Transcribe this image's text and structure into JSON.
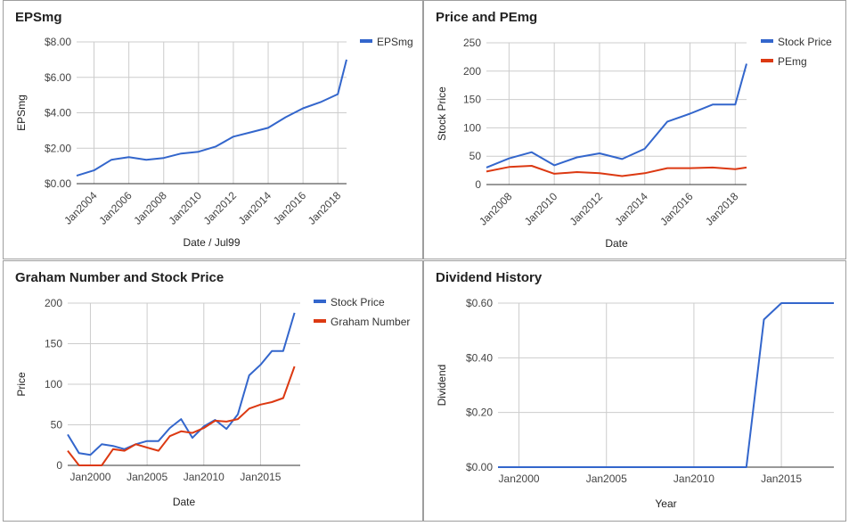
{
  "charts": [
    {
      "title": "EPSmg",
      "chart_data": {
        "type": "line",
        "x_type": "date",
        "xlabel": "Date / Jul99",
        "ylabel": "EPSmg",
        "xlim": [
          "2003-01",
          "2018-07"
        ],
        "ylim": [
          0,
          8
        ],
        "x_ticks": [
          "Jan2004",
          "Jan2006",
          "Jan2008",
          "Jan2010",
          "Jan2012",
          "Jan2014",
          "Jan2016",
          "Jan2018"
        ],
        "y_ticks": [
          "$0.00",
          "$2.00",
          "$4.00",
          "$6.00",
          "$8.00"
        ],
        "grid": true,
        "legend_position": "top-right",
        "series": [
          {
            "name": "EPSmg",
            "color": "#3366cc",
            "points": [
              [
                "2003-01",
                0.45
              ],
              [
                "2004-01",
                0.75
              ],
              [
                "2005-01",
                1.35
              ],
              [
                "2006-01",
                1.5
              ],
              [
                "2007-01",
                1.35
              ],
              [
                "2008-01",
                1.45
              ],
              [
                "2009-01",
                1.7
              ],
              [
                "2010-01",
                1.8
              ],
              [
                "2011-01",
                2.1
              ],
              [
                "2012-01",
                2.65
              ],
              [
                "2013-01",
                2.9
              ],
              [
                "2014-01",
                3.15
              ],
              [
                "2015-01",
                3.75
              ],
              [
                "2016-01",
                4.25
              ],
              [
                "2017-01",
                4.6
              ],
              [
                "2018-01",
                5.05
              ],
              [
                "2018-07",
                7.0
              ]
            ]
          }
        ]
      }
    },
    {
      "title": "Price and PEmg",
      "chart_data": {
        "type": "line",
        "x_type": "date",
        "xlabel": "Date",
        "ylabel": "Stock Price",
        "xlim": [
          "2007-01",
          "2018-07"
        ],
        "ylim": [
          0,
          250
        ],
        "x_ticks": [
          "Jan2008",
          "Jan2010",
          "Jan2012",
          "Jan2014",
          "Jan2016",
          "Jan2018"
        ],
        "y_ticks": [
          "0",
          "50",
          "100",
          "150",
          "200",
          "250"
        ],
        "grid": true,
        "legend_position": "top-right",
        "series": [
          {
            "name": "Stock Price",
            "color": "#3366cc",
            "points": [
              [
                "2007-01",
                30
              ],
              [
                "2008-01",
                46
              ],
              [
                "2009-01",
                57
              ],
              [
                "2010-01",
                34
              ],
              [
                "2011-01",
                48
              ],
              [
                "2012-01",
                55
              ],
              [
                "2013-01",
                45
              ],
              [
                "2014-01",
                63
              ],
              [
                "2015-01",
                111
              ],
              [
                "2016-01",
                125
              ],
              [
                "2017-01",
                141
              ],
              [
                "2018-01",
                141
              ],
              [
                "2018-07",
                213
              ]
            ]
          },
          {
            "name": "PEmg",
            "color": "#dc3912",
            "points": [
              [
                "2007-01",
                23
              ],
              [
                "2008-01",
                31
              ],
              [
                "2009-01",
                33
              ],
              [
                "2010-01",
                19
              ],
              [
                "2011-01",
                22
              ],
              [
                "2012-01",
                20
              ],
              [
                "2013-01",
                15
              ],
              [
                "2014-01",
                20
              ],
              [
                "2015-01",
                29
              ],
              [
                "2016-01",
                29
              ],
              [
                "2017-01",
                30
              ],
              [
                "2018-01",
                27
              ],
              [
                "2018-07",
                30
              ]
            ]
          }
        ]
      }
    },
    {
      "title": "Graham Number and Stock Price",
      "chart_data": {
        "type": "line",
        "x_type": "year",
        "xlabel": "Date",
        "ylabel": "Price",
        "xlim": [
          1998,
          2018.5
        ],
        "ylim": [
          0,
          200
        ],
        "x_ticks": [
          {
            "value": 2000,
            "label": "Jan2000"
          },
          {
            "value": 2005,
            "label": "Jan2005"
          },
          {
            "value": 2010,
            "label": "Jan2010"
          },
          {
            "value": 2015,
            "label": "Jan2015"
          }
        ],
        "y_ticks": [
          "0",
          "50",
          "100",
          "150",
          "200"
        ],
        "grid": true,
        "legend_position": "top-right",
        "series": [
          {
            "name": "Stock Price",
            "color": "#3366cc",
            "points": [
              [
                1998,
                38
              ],
              [
                1999,
                15
              ],
              [
                2000,
                13
              ],
              [
                2001,
                26
              ],
              [
                2002,
                24
              ],
              [
                2003,
                20
              ],
              [
                2004,
                26
              ],
              [
                2005,
                30
              ],
              [
                2006,
                30
              ],
              [
                2007,
                46
              ],
              [
                2008,
                57
              ],
              [
                2009,
                34
              ],
              [
                2010,
                48
              ],
              [
                2011,
                56
              ],
              [
                2012,
                45
              ],
              [
                2013,
                63
              ],
              [
                2014,
                111
              ],
              [
                2015,
                124
              ],
              [
                2016,
                141
              ],
              [
                2017,
                141
              ],
              [
                2018,
                188
              ]
            ]
          },
          {
            "name": "Graham Number",
            "color": "#dc3912",
            "points": [
              [
                1998,
                18
              ],
              [
                1999,
                0
              ],
              [
                2000,
                0
              ],
              [
                2001,
                0
              ],
              [
                2002,
                20
              ],
              [
                2003,
                18
              ],
              [
                2004,
                26
              ],
              [
                2005,
                22
              ],
              [
                2006,
                18
              ],
              [
                2007,
                36
              ],
              [
                2008,
                42
              ],
              [
                2009,
                40
              ],
              [
                2010,
                46
              ],
              [
                2011,
                55
              ],
              [
                2012,
                54
              ],
              [
                2013,
                57
              ],
              [
                2014,
                70
              ],
              [
                2015,
                75
              ],
              [
                2016,
                78
              ],
              [
                2017,
                83
              ],
              [
                2018,
                122
              ]
            ]
          }
        ]
      }
    },
    {
      "title": "Dividend History",
      "chart_data": {
        "type": "line",
        "x_type": "year",
        "xlabel": "Year",
        "ylabel": "Dividend",
        "xlim": [
          1998.8,
          2018
        ],
        "ylim": [
          0,
          0.6
        ],
        "x_ticks": [
          {
            "value": 2000,
            "label": "Jan2000"
          },
          {
            "value": 2005,
            "label": "Jan2005"
          },
          {
            "value": 2010,
            "label": "Jan2010"
          },
          {
            "value": 2015,
            "label": "Jan2015"
          }
        ],
        "y_ticks": [
          "$0.00",
          "$0.20",
          "$0.40",
          "$0.60"
        ],
        "grid": true,
        "legend_position": "none",
        "series": [
          {
            "color": "#3366cc",
            "points": [
              [
                1998.8,
                0
              ],
              [
                2013,
                0
              ],
              [
                2014,
                0.54
              ],
              [
                2015,
                0.6
              ],
              [
                2018,
                0.6
              ]
            ]
          }
        ]
      }
    }
  ]
}
